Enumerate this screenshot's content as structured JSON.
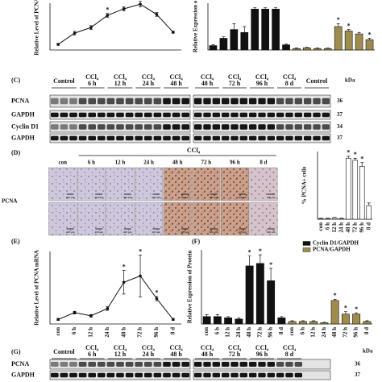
{
  "chart_data": [
    {
      "type": "line",
      "y_label": "Relative Level of PCNA",
      "categories": [
        null,
        null,
        null,
        null,
        null,
        null,
        null,
        null
      ],
      "values": [
        0.6,
        1.8,
        2.4,
        3.7,
        4.4,
        4.9,
        3.8,
        1.9
      ],
      "errors": [
        0.1,
        0.2,
        0.2,
        0.2,
        0.2,
        0.3,
        0.2,
        0.1
      ],
      "significance": [
        null,
        null,
        null,
        "*",
        null,
        null,
        null,
        null
      ],
      "color": "#111111",
      "ylim": [
        0,
        5
      ]
    },
    {
      "type": "bar",
      "y_label": "Relative Expression o",
      "categories": [
        null,
        null,
        null,
        null,
        null,
        null,
        null,
        null,
        null,
        null,
        null,
        null,
        null,
        null,
        null,
        null
      ],
      "series": [
        {
          "color": "#111111",
          "values": [
            0.3,
            0.8,
            1.4,
            1.2,
            2.8,
            2.8,
            2.8,
            0.35,
            null,
            null,
            null,
            null,
            null,
            null,
            null,
            null
          ],
          "errors": [
            0.05,
            0.1,
            0.4,
            0.4,
            0.1,
            0.1,
            0.1,
            0.05,
            null,
            null,
            null,
            null,
            null,
            null,
            null,
            null
          ]
        },
        {
          "color": "#a08c4a",
          "values": [
            null,
            null,
            null,
            null,
            null,
            null,
            null,
            null,
            0.1,
            0.15,
            0.1,
            0.1,
            1.6,
            1.3,
            1.1,
            0.7
          ],
          "errors": [
            null,
            null,
            null,
            null,
            null,
            null,
            null,
            null,
            0.03,
            0.03,
            0.03,
            0.03,
            0.2,
            0.1,
            0.1,
            0.1
          ],
          "significance": [
            null,
            null,
            null,
            null,
            null,
            null,
            null,
            null,
            null,
            null,
            null,
            null,
            "*",
            "*",
            null,
            "*"
          ]
        }
      ],
      "ylim": [
        0,
        3.2
      ]
    },
    {
      "type": "bar",
      "y_label": "% PCNA+ cells",
      "categories": [
        "con",
        "6 h",
        "12 h",
        "24 h",
        "48 h",
        "72 h",
        "96 h",
        "8 d"
      ],
      "values": [
        1,
        1,
        2,
        1,
        90,
        87,
        78,
        20
      ],
      "errors": [
        0.5,
        0.5,
        0.5,
        0.5,
        3,
        3,
        6,
        4
      ],
      "significance": [
        null,
        null,
        null,
        null,
        "*",
        "*",
        "*",
        null
      ],
      "color": "#ffffff",
      "ylim": [
        0,
        100
      ]
    },
    {
      "type": "line",
      "panel_label": "(E)",
      "y_label": "Relative Level of PCNA mRNA",
      "categories": [
        "con",
        "6 h",
        "12 h",
        "24 h",
        "48 h",
        "72 h",
        "96 h",
        "8 d"
      ],
      "values": [
        1,
        2.5,
        1.8,
        3.4,
        9.2,
        10.6,
        5.6,
        1.0
      ],
      "errors": [
        0.2,
        0.3,
        0.3,
        0.4,
        2.6,
        4.6,
        0.5,
        0.2
      ],
      "significance": [
        null,
        null,
        null,
        null,
        "*",
        "*",
        "*",
        null
      ],
      "color": "#111111",
      "ylim": [
        0,
        16
      ]
    },
    {
      "type": "bar",
      "panel_label": "(F)",
      "y_label": "Relative Expression of Protein",
      "categories": [
        "con",
        "6 h",
        "12 h",
        "24 h",
        "48 h",
        "72 h",
        "96 h",
        "8 d",
        "con",
        "6 h",
        "12 h",
        "24 h",
        "48 h",
        "72 h",
        "96 h",
        "8 d"
      ],
      "series": [
        {
          "name": "Cyclin D1/GAPDH",
          "color": "#111111",
          "values": [
            0.3,
            0.3,
            0.25,
            0.2,
            2.35,
            2.45,
            1.75,
            0.25,
            null,
            null,
            null,
            null,
            null,
            null,
            null,
            null
          ],
          "errors": [
            0.08,
            0.08,
            0.05,
            0.05,
            0.4,
            0.35,
            0.5,
            0.05,
            null,
            null,
            null,
            null,
            null,
            null,
            null,
            null
          ],
          "significance": [
            null,
            null,
            null,
            null,
            "*",
            "*",
            "*",
            null,
            null,
            null,
            null,
            null,
            null,
            null,
            null,
            null
          ]
        },
        {
          "name": "PCNA/GAPDH",
          "color": "#a08c4a",
          "values": [
            null,
            null,
            null,
            null,
            null,
            null,
            null,
            null,
            0.1,
            0.1,
            0.1,
            0.05,
            0.95,
            0.4,
            0.4,
            0.1
          ],
          "errors": [
            null,
            null,
            null,
            null,
            null,
            null,
            null,
            null,
            0.03,
            0.03,
            0.03,
            0.02,
            0.05,
            0.1,
            0.05,
            0.03
          ],
          "significance": [
            null,
            null,
            null,
            null,
            null,
            null,
            null,
            null,
            null,
            null,
            null,
            null,
            "*",
            "*",
            "*",
            null
          ]
        }
      ],
      "ylim": [
        0,
        3
      ]
    }
  ],
  "blot_c": {
    "label": "(C)",
    "left": [
      {
        "name": "Control"
      },
      {
        "name": "CCl₄",
        "time": "6 h"
      },
      {
        "name": "CCl₄",
        "time": "12 h"
      },
      {
        "name": "CCl₄",
        "time": "24 h"
      },
      {
        "name": "CCl₄",
        "time": "48 h"
      }
    ],
    "right": [
      {
        "name": "CCl₄",
        "time": "48 h"
      },
      {
        "name": "CCl₄",
        "time": "72 h"
      },
      {
        "name": "CCl₄",
        "time": "96 h"
      },
      {
        "name": "CCl₄",
        "time": "8 d"
      },
      {
        "name": "Control"
      }
    ],
    "rows": [
      "PCNA",
      "GAPDH",
      "Cyclin D1",
      "GAPDH"
    ],
    "kda_label": "kDa",
    "kda": [
      36,
      37,
      34,
      37
    ]
  },
  "histology": {
    "label": "(D)",
    "group": "CCl₄",
    "columns": [
      "con",
      "6 h",
      "12 h",
      "24 h",
      "48 h",
      "72 h",
      "96 h",
      "8 d"
    ],
    "row_label": "PCNA",
    "scale_bar": "400 μm"
  },
  "blot_g": {
    "label": "(G)",
    "left": [
      {
        "name": "Control"
      },
      {
        "name": "CCl₄",
        "time": "6 h"
      },
      {
        "name": "CCl₄",
        "time": "12 h"
      },
      {
        "name": "CCl₄",
        "time": "24 h"
      },
      {
        "name": "CCl₄",
        "time": "48 h"
      }
    ],
    "right": [
      {
        "name": "CCl₄",
        "time": "48 h"
      },
      {
        "name": "CCl₄",
        "time": "72 h"
      },
      {
        "name": "CCl₄",
        "time": "96 h"
      },
      {
        "name": "CCl₄",
        "time": "8 d"
      }
    ],
    "rows": [
      "PCNA",
      "GAPDH"
    ],
    "kda_label": "kDa",
    "kda": [
      36,
      37
    ]
  }
}
